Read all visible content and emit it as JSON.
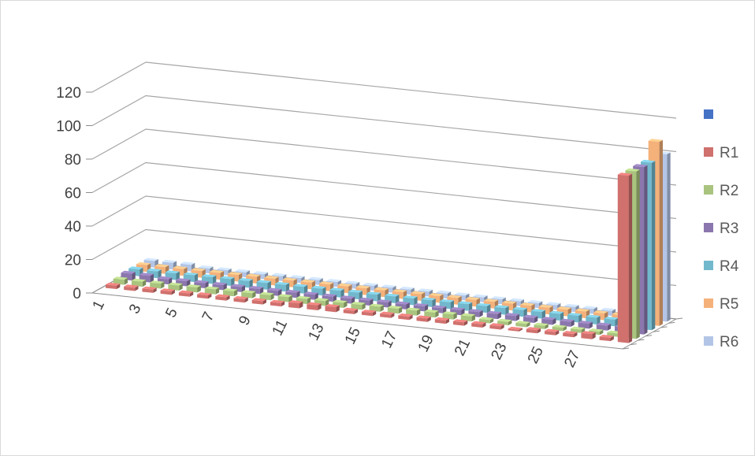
{
  "chart_data": {
    "type": "bar",
    "subtype": "3d-column",
    "title": "",
    "xlabel": "",
    "ylabel": "",
    "ylim": [
      0,
      120
    ],
    "ytick_values": [
      0,
      20,
      40,
      60,
      80,
      100,
      120
    ],
    "ytick_labels": [
      "0",
      "20",
      "40",
      "60",
      "80",
      "100",
      "120"
    ],
    "xtick_labels": [
      "1",
      "3",
      "5",
      "7",
      "9",
      "11",
      "13",
      "15",
      "17",
      "19",
      "21",
      "23",
      "25",
      "27"
    ],
    "categories": [
      1,
      2,
      3,
      4,
      5,
      6,
      7,
      8,
      9,
      10,
      11,
      12,
      13,
      14,
      15,
      16,
      17,
      18,
      19,
      20,
      21,
      22,
      23,
      24,
      25,
      26,
      27,
      28,
      29
    ],
    "grid": true,
    "legend_position": "right",
    "series": [
      {
        "name": "",
        "color": "#4472c4",
        "values": [
          0,
          0,
          0,
          0,
          0,
          0,
          0,
          0,
          0,
          0,
          0,
          0,
          0,
          0,
          0,
          0,
          0,
          0,
          0,
          0,
          0,
          0,
          0,
          0,
          0,
          0,
          0,
          0,
          0
        ]
      },
      {
        "name": "R1",
        "color": "#d0716e",
        "values": [
          2,
          2,
          2,
          2,
          2,
          2,
          2,
          2,
          2,
          2,
          3,
          3,
          3,
          2,
          2,
          2,
          2,
          2,
          2,
          2,
          2,
          2,
          1,
          2,
          2,
          2,
          3,
          2,
          100
        ]
      },
      {
        "name": "R2",
        "color": "#a9c47f",
        "values": [
          3,
          3,
          3,
          3,
          3,
          3,
          3,
          3,
          3,
          3,
          3,
          3,
          3,
          3,
          3,
          3,
          3,
          3,
          3,
          3,
          2,
          2,
          2,
          2,
          2,
          2,
          2,
          2,
          100
        ]
      },
      {
        "name": "R3",
        "color": "#8b77ad",
        "values": [
          4,
          4,
          3,
          3,
          3,
          3,
          3,
          3,
          3,
          3,
          3,
          3,
          3,
          3,
          3,
          3,
          3,
          3,
          3,
          3,
          3,
          3,
          3,
          3,
          3,
          3,
          3,
          3,
          100
        ]
      },
      {
        "name": "R4",
        "color": "#72b8cc",
        "values": [
          4,
          4,
          4,
          4,
          4,
          4,
          4,
          4,
          4,
          4,
          4,
          4,
          4,
          4,
          4,
          4,
          4,
          4,
          4,
          4,
          4,
          4,
          4,
          4,
          4,
          4,
          4,
          4,
          100
        ]
      },
      {
        "name": "R5",
        "color": "#f5b17a",
        "values": [
          4,
          4,
          4,
          4,
          4,
          4,
          4,
          4,
          4,
          4,
          4,
          4,
          4,
          4,
          4,
          4,
          4,
          4,
          4,
          4,
          4,
          4,
          4,
          4,
          4,
          4,
          4,
          4,
          110
        ]
      },
      {
        "name": "R6",
        "color": "#b3c5e6",
        "values": [
          4,
          4,
          4,
          3,
          3,
          3,
          3,
          3,
          3,
          3,
          3,
          3,
          3,
          3,
          3,
          3,
          3,
          3,
          3,
          3,
          3,
          3,
          3,
          3,
          3,
          3,
          3,
          3,
          100
        ]
      }
    ]
  }
}
